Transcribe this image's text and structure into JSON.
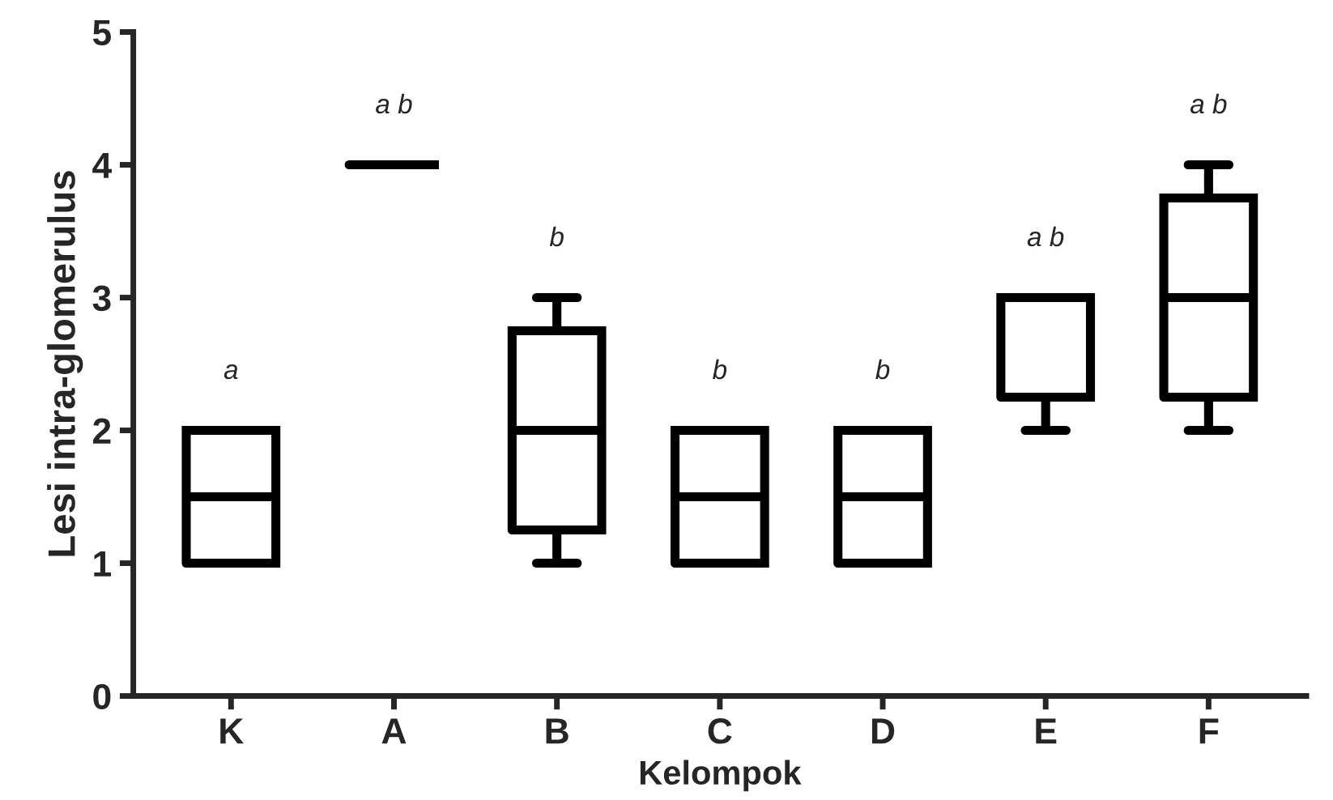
{
  "chart_data": {
    "type": "box",
    "xlabel": "Kelompok",
    "ylabel": "Lesi intra-glomerulus",
    "categories": [
      "K",
      "A",
      "B",
      "C",
      "D",
      "E",
      "F"
    ],
    "boxes": [
      {
        "low": 1,
        "q1": 1,
        "median": 1.5,
        "q3": 2,
        "high": 2
      },
      {
        "low": 4,
        "q1": 4,
        "median": 4,
        "q3": 4,
        "high": 4
      },
      {
        "low": 1,
        "q1": 1.25,
        "median": 2,
        "q3": 2.75,
        "high": 3
      },
      {
        "low": 1,
        "q1": 1,
        "median": 1.5,
        "q3": 2,
        "high": 2
      },
      {
        "low": 1,
        "q1": 1,
        "median": 1.5,
        "q3": 2,
        "high": 2
      },
      {
        "low": 2,
        "q1": 2.25,
        "median": 3,
        "q3": 3,
        "high": 3
      },
      {
        "low": 2,
        "q1": 2.25,
        "median": 3,
        "q3": 3.75,
        "high": 4
      }
    ],
    "color": "#000000",
    "ylim": [
      0,
      5
    ],
    "yticks": [
      0,
      1,
      2,
      3,
      4,
      5
    ],
    "grid": false,
    "annotations": [
      "a",
      "a b",
      "b",
      "b",
      "b",
      "a b",
      "a b"
    ]
  }
}
